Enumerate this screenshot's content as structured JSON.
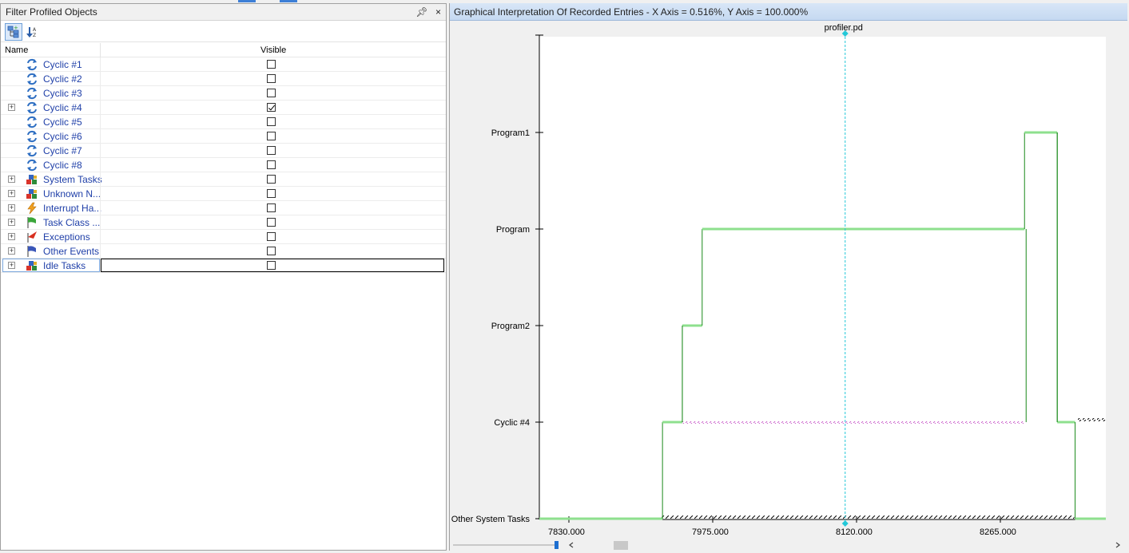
{
  "left_panel": {
    "title": "Filter Profiled Objects",
    "pin_glyph": "♂",
    "close_glyph": "×",
    "columns": {
      "name": "Name",
      "visible": "Visible"
    },
    "rows": [
      {
        "label": "Cyclic #1",
        "icon": "cyclic-icon",
        "expandable": false,
        "visible": false
      },
      {
        "label": "Cyclic #2",
        "icon": "cyclic-icon",
        "expandable": false,
        "visible": false
      },
      {
        "label": "Cyclic #3",
        "icon": "cyclic-icon",
        "expandable": false,
        "visible": false
      },
      {
        "label": "Cyclic #4",
        "icon": "cyclic-icon",
        "expandable": true,
        "visible": true
      },
      {
        "label": "Cyclic #5",
        "icon": "cyclic-icon",
        "expandable": false,
        "visible": false
      },
      {
        "label": "Cyclic #6",
        "icon": "cyclic-icon",
        "expandable": false,
        "visible": false
      },
      {
        "label": "Cyclic #7",
        "icon": "cyclic-icon",
        "expandable": false,
        "visible": false
      },
      {
        "label": "Cyclic #8",
        "icon": "cyclic-icon",
        "expandable": false,
        "visible": false
      },
      {
        "label": "System Tasks",
        "icon": "system-tasks-icon",
        "expandable": true,
        "visible": false
      },
      {
        "label": "Unknown N...",
        "icon": "system-tasks-icon",
        "expandable": true,
        "visible": false
      },
      {
        "label": "Interrupt Ha...",
        "icon": "lightning-icon",
        "expandable": true,
        "visible": false
      },
      {
        "label": "Task Class ...",
        "icon": "green-flag-icon",
        "expandable": true,
        "visible": false
      },
      {
        "label": "Exceptions",
        "icon": "exception-icon",
        "expandable": true,
        "visible": false
      },
      {
        "label": "Other Events",
        "icon": "blue-flag-icon",
        "expandable": true,
        "visible": false
      },
      {
        "label": "Idle Tasks",
        "icon": "system-tasks-icon",
        "expandable": true,
        "visible": false,
        "selected": true
      }
    ]
  },
  "right_panel": {
    "title": "Graphical Interpretation Of Recorded Entries - X Axis = 0.516%, Y Axis = 100.000%"
  },
  "chart_data": {
    "type": "line",
    "marker_label": "profiler.pd",
    "marker_x": 8090,
    "x_ticks": [
      7830,
      7975,
      8120,
      8265
    ],
    "x_tick_labels": [
      "7830.000",
      "7975.000",
      "8120.000",
      "8265.000"
    ],
    "xlim": [
      7800,
      8340
    ],
    "y_categories": [
      "Other System Tasks",
      "Cyclic #4",
      "Program2",
      "Program",
      "Program1"
    ],
    "segments": [
      {
        "level": "Other System Tasks",
        "x0": 7800,
        "x1": 7930
      },
      {
        "level": "Cyclic #4",
        "x0": 7930,
        "x1": 7950
      },
      {
        "level": "Program2",
        "x0": 7950,
        "x1": 7970
      },
      {
        "level": "Program",
        "x0": 7970,
        "x1": 8295
      },
      {
        "level": "Program1",
        "x0": 8295,
        "x1": 8328
      },
      {
        "level": "Cyclic #4",
        "x0": 8328,
        "x1": 8346
      },
      {
        "level": "Other System Tasks",
        "x0": 8346,
        "x1": 8380
      }
    ],
    "colors": {
      "trace": "#8ee08e",
      "edge": "#1a8a1a",
      "marker": "#22c8d8",
      "hatch_magenta": "#c040c0"
    }
  }
}
